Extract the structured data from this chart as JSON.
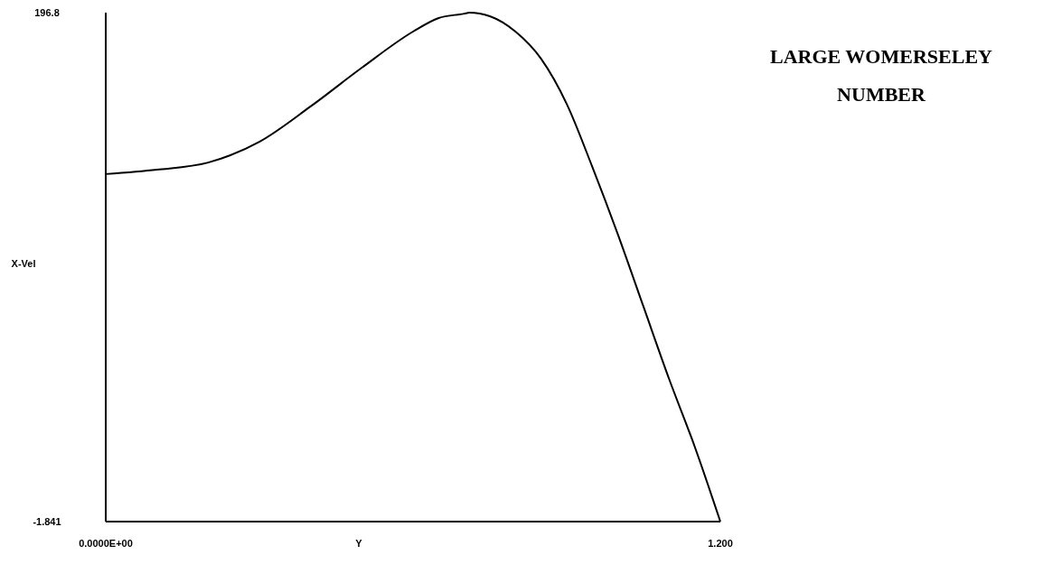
{
  "chart_data": {
    "type": "line",
    "title": "LARGE WOMERSELEY NUMBER",
    "xlabel": "Y",
    "ylabel": "X-Vel",
    "x": [
      0,
      0.1,
      0.2,
      0.3,
      0.4,
      0.5,
      0.6,
      0.65,
      0.7,
      0.71,
      0.75,
      0.8,
      0.85,
      0.9,
      0.95,
      1.0,
      1.05,
      1.1,
      1.15,
      1.2
    ],
    "series": [
      {
        "color": "#000000",
        "values": [
          133.8,
          135.5,
          138.3,
          146.4,
          160.2,
          175.3,
          189.4,
          194.7,
          196.4,
          196.8,
          195.4,
          189.4,
          178.8,
          161.2,
          136.6,
          110.2,
          82.0,
          53.8,
          27.4,
          -1.841
        ]
      }
    ],
    "xlim": [
      0,
      1.2
    ],
    "ylim": [
      -1.841,
      196.8
    ],
    "xticks": [
      {
        "value": 0,
        "label": "0.0000E+00"
      },
      {
        "value": 1.2,
        "label": "1.200"
      }
    ],
    "yticks": [
      -1.841,
      196.8
    ],
    "grid": false,
    "marker": "none",
    "line_style": "solid"
  }
}
